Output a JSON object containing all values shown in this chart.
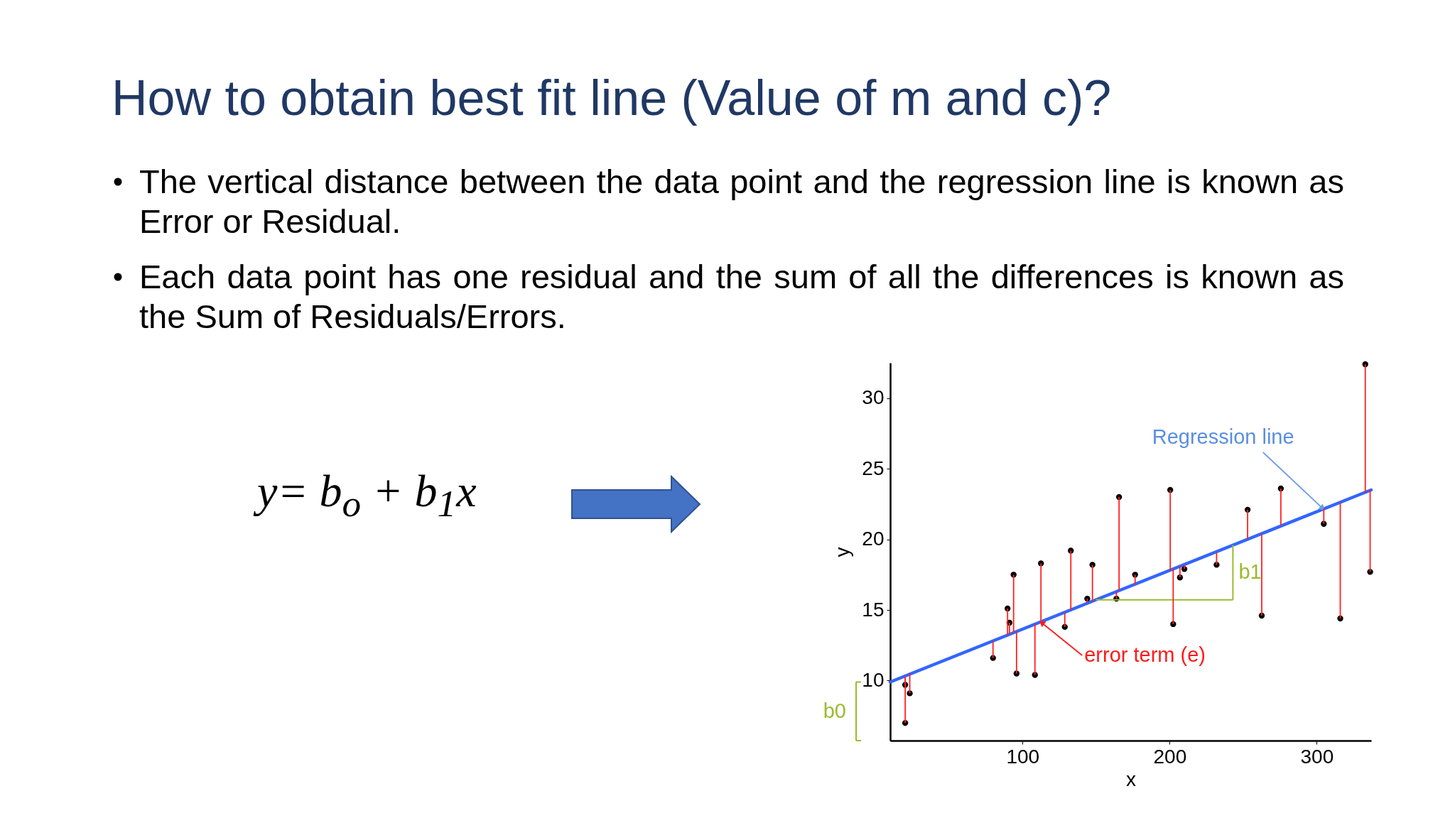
{
  "chart_data": {
    "type": "scatter",
    "title": "How to obtain best fit line (Value of m and c)?",
    "xlabel": "x",
    "ylabel": "y",
    "xlim": [
      10,
      337
    ],
    "ylim": [
      5.75,
      32.5
    ],
    "xticks": [
      100,
      200,
      300
    ],
    "yticks": [
      10,
      15,
      20,
      25,
      30
    ],
    "series": [
      {
        "marker": "circle",
        "color": "#000000",
        "x": [
          20.2,
          23.3,
          20.2,
          79.9,
          89.8,
          91.1,
          93.9,
          95.9,
          108.4,
          112.5,
          128.7,
          132.8,
          144,
          147.5,
          163.8,
          165.6,
          176.5,
          200.4,
          202.4,
          207,
          210,
          231.9,
          253,
          262.6,
          275.6,
          304.8,
          316,
          333,
          336.3
        ],
        "values": [
          9.7,
          9.1,
          7.0,
          11.6,
          15.1,
          14.1,
          17.5,
          10.5,
          10.4,
          18.3,
          13.8,
          19.2,
          15.8,
          18.2,
          15.8,
          23.0,
          17.5,
          23.5,
          14.0,
          17.3,
          17.9,
          18.2,
          22.1,
          14.6,
          23.6,
          21.1,
          14.4,
          32.4,
          17.7
        ],
        "errors": [
          [
            9.7,
            10.3
          ],
          [
            9.1,
            10.5
          ],
          [
            7.0,
            10.3
          ],
          [
            11.6,
            12.8
          ],
          [
            13.2,
            15.1
          ],
          [
            13.3,
            14.1
          ],
          [
            13.4,
            17.5
          ],
          [
            10.5,
            13.5
          ],
          [
            10.4,
            14.0
          ],
          [
            14.2,
            18.3
          ],
          [
            13.8,
            14.8
          ],
          [
            15.0,
            19.2
          ],
          [
            15.5,
            15.8
          ],
          [
            15.6,
            18.2
          ],
          [
            15.8,
            16.3
          ],
          [
            16.4,
            23.0
          ],
          [
            16.8,
            17.5
          ],
          [
            17.8,
            23.5
          ],
          [
            14.0,
            17.9
          ],
          [
            17.3,
            18.1
          ],
          [
            17.9,
            18.2
          ],
          [
            18.2,
            19.1
          ],
          [
            20.0,
            22.1
          ],
          [
            14.6,
            20.4
          ],
          [
            21.0,
            23.6
          ],
          [
            21.1,
            22.2
          ],
          [
            14.4,
            22.6
          ],
          [
            23.3,
            32.4
          ],
          [
            17.7,
            23.5
          ]
        ]
      },
      {
        "type": "line",
        "color": "#3366ff",
        "x": [
          10,
          337
        ],
        "values": [
          9.9,
          23.5
        ]
      }
    ],
    "annotations": [
      "The vertical distance between the data point and the regression line is known as Error or Residual.",
      "Each data point has one residual and the sum of all the differences is known as the Sum of Residuals/Errors.",
      "y= b$_{o}$ + b$_{1}$x",
      {
        "text": "Regression line",
        "x": 304,
        "y": 22.2
      },
      {
        "text": "error term (e)",
        "x": 113,
        "y": 14.1
      },
      {
        "text": "b1",
        "x": 243,
        "y": 19.6
      },
      {
        "text": "b0",
        "x": 10,
        "y": 9.9
      }
    ]
  }
}
